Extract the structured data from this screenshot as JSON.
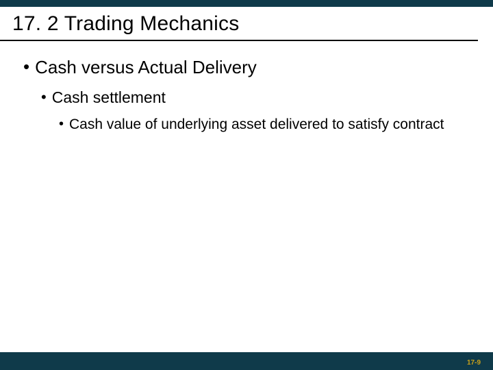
{
  "colors": {
    "dark_teal": "#0f3a4a",
    "gold": "#c9a11a",
    "black": "#000000",
    "white": "#ffffff"
  },
  "title": "17. 2 Trading Mechanics",
  "bullets": {
    "l1": "Cash versus Actual Delivery",
    "l2": "Cash settlement",
    "l3": "Cash value of underlying asset delivered to satisfy contract"
  },
  "page_number": "17-9",
  "fonts": {
    "title_size": 30,
    "l1_size": 26,
    "l2_size": 23,
    "l3_size": 21,
    "pagenum_size": 10
  }
}
